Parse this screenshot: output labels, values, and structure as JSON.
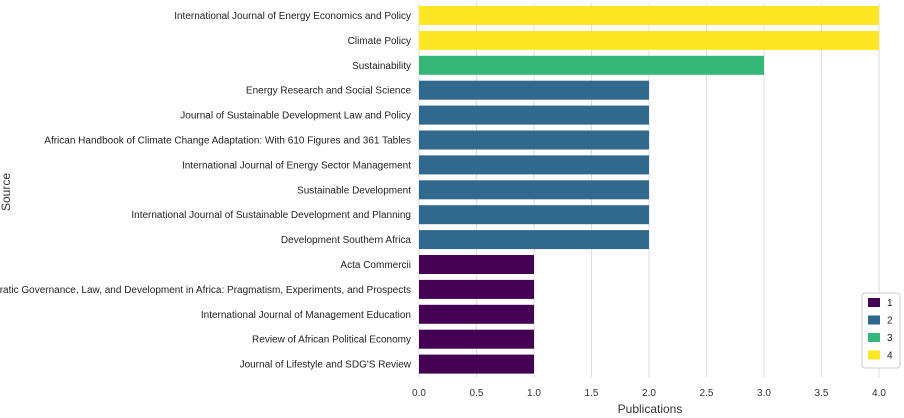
{
  "chart_data": {
    "type": "bar",
    "orientation": "horizontal",
    "categories": [
      "International Journal of Energy Economics and Policy",
      "Climate Policy",
      "Sustainability",
      "Energy Research and Social Science",
      "Journal of Sustainable Development Law and Policy",
      "African Handbook of Climate Change Adaptation: With 610 Figures and 361 Tables",
      "International Journal of Energy Sector Management",
      "Sustainable Development",
      "International Journal of Sustainable Development and Planning",
      "Development Southern Africa",
      "Acta Commercii",
      "Democratic Governance, Law, and Development in Africa: Pragmatism, Experiments, and Prospects",
      "International Journal of Management Education",
      "Review of African Political Economy",
      "Journal of Lifestyle and SDG'S Review"
    ],
    "values": [
      4,
      4,
      3,
      2,
      2,
      2,
      2,
      2,
      2,
      2,
      1,
      1,
      1,
      1,
      1
    ],
    "title": "",
    "xlabel": "Publications",
    "ylabel": "Source",
    "xlim": [
      0,
      4.2
    ],
    "xticks": [
      "0.0",
      "0.5",
      "1.0",
      "1.5",
      "2.0",
      "2.5",
      "3.0",
      "3.5",
      "4.0"
    ],
    "grid": "vertical",
    "legend": {
      "placement": "bottom-right",
      "entries": [
        {
          "label": "1",
          "value": 1,
          "color": "#440154"
        },
        {
          "label": "2",
          "value": 2,
          "color": "#31688e"
        },
        {
          "label": "3",
          "value": 3,
          "color": "#35b779"
        },
        {
          "label": "4",
          "value": 4,
          "color": "#fde725"
        }
      ]
    }
  }
}
